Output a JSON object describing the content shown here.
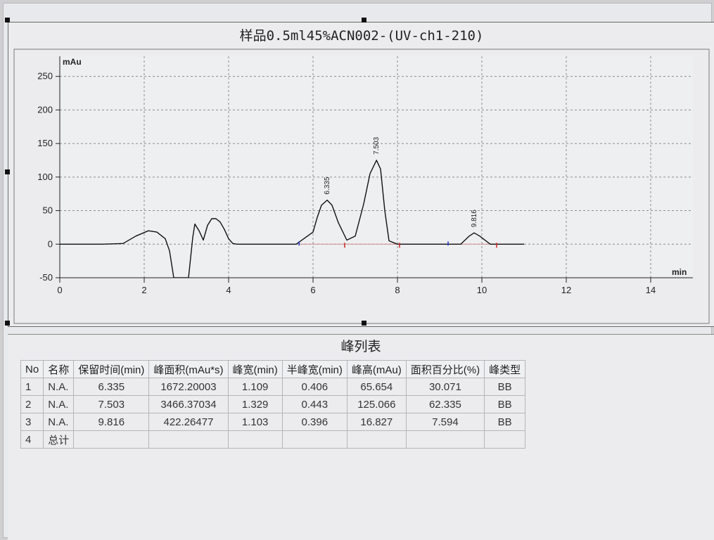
{
  "chart": {
    "title": "样品0.5ml45%ACN002-(UV-ch1-210)"
  },
  "chart_data": {
    "type": "line",
    "ylabel": "mAu",
    "xlabel": "min",
    "xlim": [
      0,
      15
    ],
    "ylim": [
      -50,
      280
    ],
    "x_ticks": [
      "0",
      "2",
      "4",
      "6",
      "8",
      "10",
      "12",
      "14"
    ],
    "y_ticks": [
      "-50",
      "0",
      "50",
      "100",
      "150",
      "200",
      "250"
    ],
    "x_tick_values": [
      0,
      2,
      4,
      6,
      8,
      10,
      12,
      14
    ],
    "y_tick_values": [
      -50,
      0,
      50,
      100,
      150,
      200,
      250
    ],
    "grid": true,
    "series": [
      {
        "x": [
          0.0,
          1.0,
          1.5,
          1.8,
          2.1,
          2.3,
          2.5,
          2.6,
          2.7,
          3.05,
          3.15,
          3.2,
          3.3,
          3.4,
          3.5,
          3.6,
          3.7,
          3.8,
          3.9,
          4.0,
          4.1,
          4.2,
          4.4,
          5.0,
          5.6,
          6.0,
          6.1,
          6.2,
          6.335,
          6.45,
          6.6,
          6.8,
          7.0,
          7.2,
          7.35,
          7.503,
          7.6,
          7.7,
          7.8,
          8.0,
          8.5,
          9.0,
          9.5,
          9.7,
          9.816,
          9.95,
          10.2,
          10.5,
          11.0
        ],
        "y": [
          0,
          0,
          1,
          12,
          20,
          18,
          8,
          -10,
          -50,
          -50,
          10,
          30,
          20,
          6,
          28,
          38,
          38,
          33,
          22,
          8,
          1,
          0,
          0,
          0,
          0,
          18,
          40,
          58,
          65.654,
          58,
          32,
          6,
          12,
          60,
          105,
          125.066,
          112,
          50,
          5,
          0,
          0,
          0,
          0,
          12,
          16.827,
          12,
          0,
          0,
          0
        ]
      }
    ],
    "peak_labels": [
      {
        "text": "6.335",
        "x": 6.335,
        "y": 65.654
      },
      {
        "text": "7.503",
        "x": 7.503,
        "y": 125.066
      },
      {
        "text": "9.816",
        "x": 9.816,
        "y": 16.827
      }
    ],
    "peak_markers": {
      "blue": [
        5.67,
        9.2
      ],
      "red": [
        6.75,
        8.05,
        10.35
      ]
    }
  },
  "table": {
    "title": "峰列表",
    "headers": [
      "No",
      "名称",
      "保留时间(min)",
      "峰面积(mAu*s)",
      "峰宽(min)",
      "半峰宽(min)",
      "峰高(mAu)",
      "面积百分比(%)",
      "峰类型"
    ],
    "rows": [
      [
        "1",
        "N.A.",
        "6.335",
        "1672.20003",
        "1.109",
        "0.406",
        "65.654",
        "30.071",
        "BB"
      ],
      [
        "2",
        "N.A.",
        "7.503",
        "3466.37034",
        "1.329",
        "0.443",
        "125.066",
        "62.335",
        "BB"
      ],
      [
        "3",
        "N.A.",
        "9.816",
        "422.26477",
        "1.103",
        "0.396",
        "16.827",
        "7.594",
        "BB"
      ],
      [
        "4",
        "总计",
        "",
        "",
        "",
        "",
        "",
        "",
        ""
      ]
    ]
  },
  "colors": {
    "trace": "#111111",
    "grid": "#8c8c8c",
    "baseline": "#d08c8c",
    "marker_blue": "#2233cc",
    "marker_red": "#cc2222"
  }
}
